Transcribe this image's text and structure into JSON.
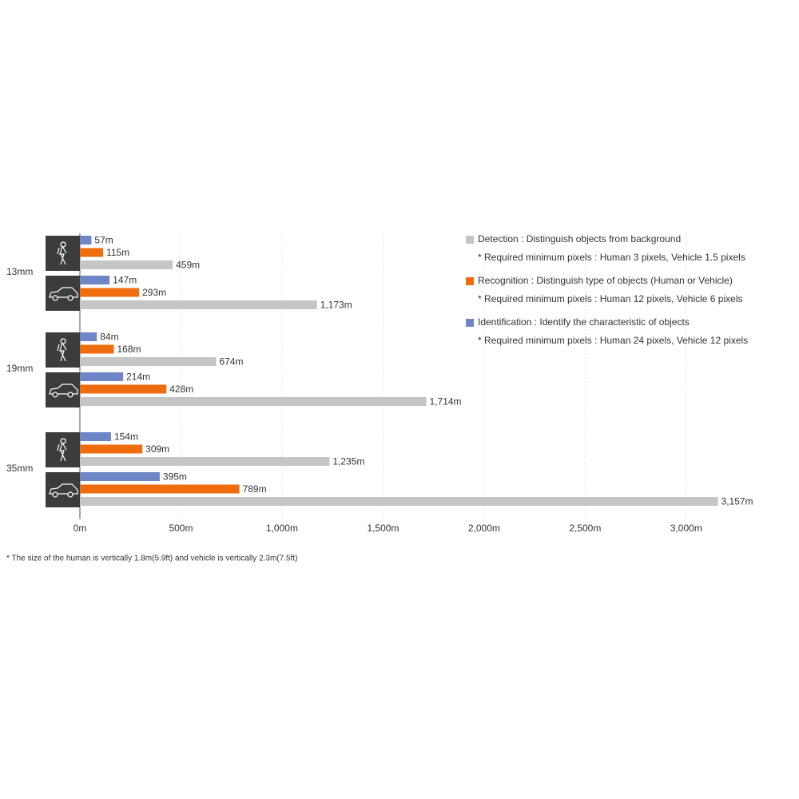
{
  "chart_data": {
    "type": "bar",
    "orientation": "horizontal",
    "groups": [
      "13mm",
      "19mm",
      "35mm"
    ],
    "categories": [
      null,
      null,
      null,
      null,
      null,
      null
    ],
    "series": [
      {
        "name": "Identification : Identify the characteristic of objects",
        "note": "* Required minimum pixels : Human 24 pixels, Vehicle 12 pixels",
        "color": "#6f86c6",
        "values": [
          57,
          147,
          84,
          214,
          154,
          395
        ],
        "value_labels": [
          "57m",
          "147m",
          "84m",
          "214m",
          "154m",
          "395m"
        ]
      },
      {
        "name": "Recognition : Distinguish type of objects (Human or Vehicle)",
        "note": "* Required minimum pixels : Human 12 pixels, Vehicle 6 pixels",
        "color": "#ef6c0f",
        "values": [
          115,
          293,
          168,
          428,
          309,
          789
        ],
        "value_labels": [
          "115m",
          "293m",
          "168m",
          "428m",
          "309m",
          "789m"
        ]
      },
      {
        "name": "Detection : Distinguish objects from background",
        "note": "* Required minimum pixels : Human 3 pixels, Vehicle 1.5 pixels",
        "color": "#c5c5c5",
        "values": [
          459,
          1173,
          674,
          1714,
          1235,
          3157
        ],
        "value_labels": [
          "459m",
          "1,173m",
          "674m",
          "1,714m",
          "1,235m",
          "3,157m"
        ]
      }
    ],
    "xlim": [
      0,
      3400
    ],
    "xticks": [
      {
        "value": 0,
        "label": "0m"
      },
      {
        "value": 500,
        "label": "500m"
      },
      {
        "value": 1000,
        "label": "1,000m"
      },
      {
        "value": 1500,
        "label": "1,500m"
      },
      {
        "value": 2000,
        "label": "2,000m"
      },
      {
        "value": 2500,
        "label": "2,500m"
      },
      {
        "value": 3000,
        "label": "3,000m"
      }
    ],
    "grid": true,
    "footnote": "* The size of the human is vertically 1.8m(5.9ft) and vehicle is vertically 2.3m(7.5ft)"
  }
}
